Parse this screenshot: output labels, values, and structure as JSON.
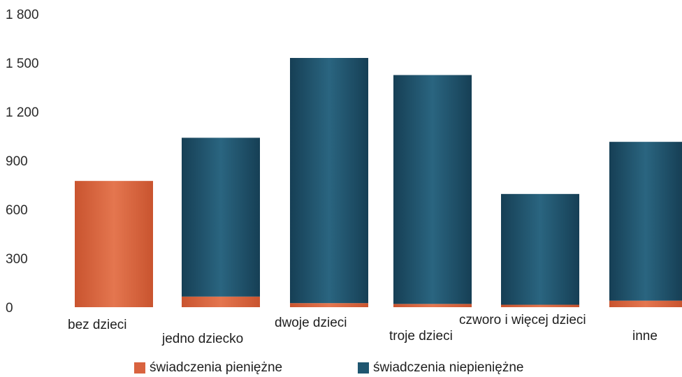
{
  "chart_data": {
    "type": "bar",
    "stacked": true,
    "categories": [
      "bez dzieci",
      "jedno dziecko",
      "dwoje dzieci",
      "troje dzieci",
      "czworo i więcej dzieci",
      "inne"
    ],
    "series": [
      {
        "name": "świadczenia pieniężne",
        "color": "#d9633f",
        "values": [
          775,
          65,
          25,
          20,
          15,
          40
        ]
      },
      {
        "name": "świadczenia niepieniężne",
        "color": "#1f5670",
        "values": [
          0,
          975,
          1505,
          1405,
          680,
          975
        ]
      }
    ],
    "yticks": [
      "0",
      "300",
      "600",
      "900",
      "1 200",
      "1 500",
      "1 800"
    ],
    "ylim": [
      0,
      1800
    ],
    "grid": false,
    "legend_position": "bottom",
    "title": "",
    "xlabel": "",
    "ylabel": ""
  }
}
